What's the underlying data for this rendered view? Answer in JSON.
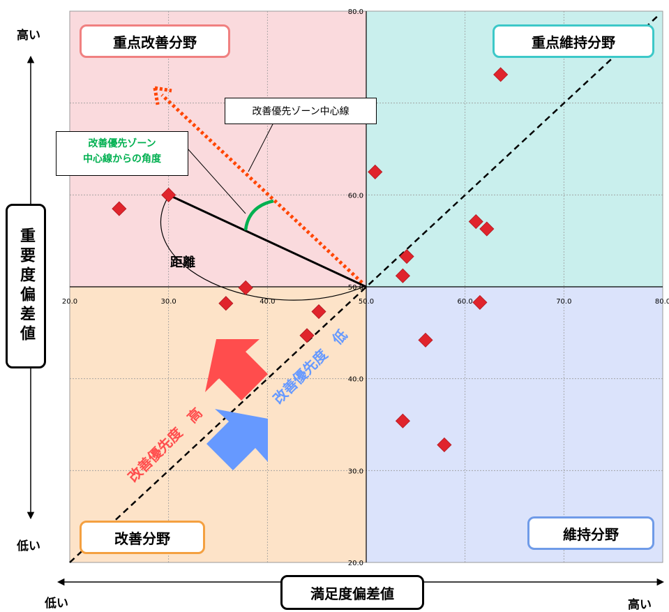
{
  "chart_data": {
    "type": "scatter",
    "xlabel": "満足度偏差値",
    "ylabel": "重要度偏差値",
    "xlim": [
      20,
      80
    ],
    "ylim": [
      20,
      80
    ],
    "x_ticks": [
      "20.0",
      "30.0",
      "40.0",
      "50.0",
      "60.0",
      "70.0",
      "80.0"
    ],
    "y_ticks": [
      "20.0",
      "30.0",
      "40.0",
      "50.0",
      "60.0",
      "70.0",
      "80.0"
    ],
    "grid": true,
    "points": [
      {
        "x": 25.0,
        "y": 58.5
      },
      {
        "x": 30.0,
        "y": 60.0
      },
      {
        "x": 35.8,
        "y": 48.2
      },
      {
        "x": 37.8,
        "y": 49.9
      },
      {
        "x": 44.0,
        "y": 44.7
      },
      {
        "x": 45.2,
        "y": 47.3
      },
      {
        "x": 50.9,
        "y": 62.5
      },
      {
        "x": 53.7,
        "y": 51.2
      },
      {
        "x": 54.1,
        "y": 53.3
      },
      {
        "x": 53.7,
        "y": 35.4
      },
      {
        "x": 56.0,
        "y": 44.2
      },
      {
        "x": 57.9,
        "y": 32.8
      },
      {
        "x": 61.1,
        "y": 57.1
      },
      {
        "x": 61.5,
        "y": 48.3
      },
      {
        "x": 62.2,
        "y": 56.3
      },
      {
        "x": 63.6,
        "y": 73.1
      }
    ],
    "marker_color": "#e0242c",
    "quadrants": {
      "top_left": {
        "label": "重点改善分野",
        "fill": "#fadadd",
        "border": "#f08080"
      },
      "top_right": {
        "label": "重点維持分野",
        "fill": "#c9efed",
        "border": "#3cc8c8"
      },
      "bottom_left": {
        "label": "改善分野",
        "fill": "#fde3c8",
        "border": "#f4a040"
      },
      "bottom_right": {
        "label": "維持分野",
        "fill": "#dbe3fb",
        "border": "#6f9be8"
      }
    },
    "annotations": {
      "center_line": "改善優先ゾーン中心線",
      "angle_label_line1": "改善優先ゾーン",
      "angle_label_line2": "中心線からの角度",
      "distance": "距離",
      "priority_high": "改善優先度　高",
      "priority_low": "改善優先度　低"
    },
    "axis_ends": {
      "y_high": "高い",
      "y_low": "低い",
      "x_low": "低い",
      "x_high": "高い"
    },
    "colors": {
      "priority_high": "#ff4d4d",
      "priority_low": "#6699ff",
      "angle_arc": "#00b050",
      "zone_arrow": "#ff4500"
    }
  }
}
